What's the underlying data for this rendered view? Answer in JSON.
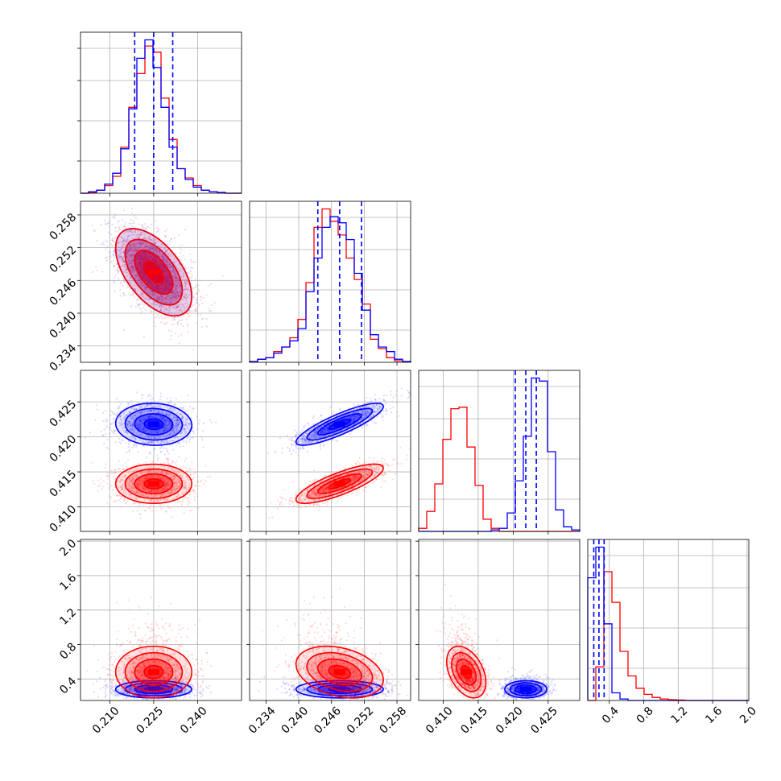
{
  "chart_data": {
    "type": "corner",
    "title": "",
    "grid": true,
    "colors": {
      "blue": "#0000ff",
      "red": "#ff0000"
    },
    "series": [
      {
        "color": "blue",
        "median": [
          0.225,
          0.2475,
          0.4218,
          0.28
        ],
        "quantiles_16_50_84": [
          [
            0.2185,
            0.225,
            0.2315
          ],
          [
            0.2435,
            0.2475,
            0.2515
          ],
          [
            0.4203,
            0.4218,
            0.4233
          ],
          [
            0.22,
            0.28,
            0.34
          ]
        ],
        "std": [
          0.0065,
          0.004,
          0.0015,
          0.05
        ],
        "corr": [
          [
            1,
            -0.55,
            -0.05,
            0.0
          ],
          [
            -0.55,
            1,
            0.85,
            0.0
          ],
          [
            -0.05,
            0.85,
            1,
            0.0
          ],
          [
            0.0,
            0.0,
            0.0,
            1
          ]
        ]
      },
      {
        "color": "red",
        "median": [
          0.225,
          0.2475,
          0.4133,
          0.48
        ],
        "std": [
          0.0065,
          0.004,
          0.0014,
          0.15
        ],
        "corr": [
          [
            1,
            -0.55,
            0.0,
            0.0
          ],
          [
            -0.55,
            1,
            0.8,
            -0.3
          ],
          [
            0.0,
            0.8,
            1,
            -0.4
          ],
          [
            0.0,
            -0.3,
            -0.4,
            1
          ]
        ]
      }
    ],
    "params": [
      {
        "range": [
          0.2,
          0.255
        ],
        "ticks": [
          "0.210",
          "0.225",
          "0.240"
        ],
        "tick_values": [
          0.21,
          0.225,
          0.24
        ]
      },
      {
        "range": [
          0.231,
          0.2605
        ],
        "ticks": [
          "0.234",
          "0.240",
          "0.246",
          "0.252",
          "0.258"
        ],
        "tick_values": [
          0.234,
          0.24,
          0.246,
          0.252,
          0.258
        ]
      },
      {
        "range": [
          0.4065,
          0.4295
        ],
        "ticks": [
          "0.410",
          "0.415",
          "0.420",
          "0.425"
        ],
        "tick_values": [
          0.41,
          0.415,
          0.42,
          0.425
        ]
      },
      {
        "range": [
          0.15,
          2.02
        ],
        "ticks": [
          "0.4",
          "0.8",
          "1.2",
          "1.6",
          "2.0"
        ],
        "tick_values": [
          0.4,
          0.8,
          1.2,
          1.6,
          2.0
        ]
      }
    ],
    "histograms": [
      {
        "bins": 20,
        "blue": [
          0,
          1,
          2,
          6,
          13,
          29,
          55,
          88,
          100,
          82,
          56,
          30,
          16,
          9,
          4,
          2,
          1,
          0.5,
          0,
          0
        ],
        "red": [
          0,
          0.5,
          2,
          5,
          11,
          30,
          56,
          78,
          96,
          92,
          62,
          35,
          16,
          10,
          5,
          2,
          1,
          0.5,
          0,
          0
        ]
      },
      {
        "bins": 20,
        "blue": [
          0.5,
          2,
          3,
          6,
          10,
          14,
          22,
          46,
          68,
          88,
          95,
          91,
          80,
          58,
          34,
          18,
          10,
          7,
          2,
          0.5
        ],
        "red": [
          0.5,
          2,
          3,
          7,
          10,
          16,
          28,
          52,
          88,
          100,
          92,
          83,
          68,
          54,
          38,
          15,
          9,
          3,
          1,
          0.5
        ]
      },
      {
        "bins": 20,
        "blue": [
          0,
          0,
          0,
          0,
          0,
          0,
          0,
          0,
          0,
          1,
          2,
          12,
          33,
          62,
          100,
          98,
          52,
          14,
          3,
          1
        ],
        "red": [
          2,
          13,
          31,
          60,
          80,
          81,
          55,
          30,
          8,
          2,
          0,
          0,
          0,
          0,
          0,
          0,
          0,
          0,
          0,
          0
        ]
      },
      {
        "bins": 20,
        "blue": [
          80,
          100,
          50,
          5,
          1,
          0,
          0,
          0,
          0,
          0,
          0,
          0,
          0,
          0,
          0,
          0,
          0,
          0,
          0,
          0
        ],
        "red": [
          0,
          22,
          84,
          64,
          32,
          16,
          8,
          4,
          2,
          1,
          0.5,
          0.3,
          0,
          0,
          0,
          0,
          0,
          0,
          0,
          0
        ]
      }
    ]
  }
}
